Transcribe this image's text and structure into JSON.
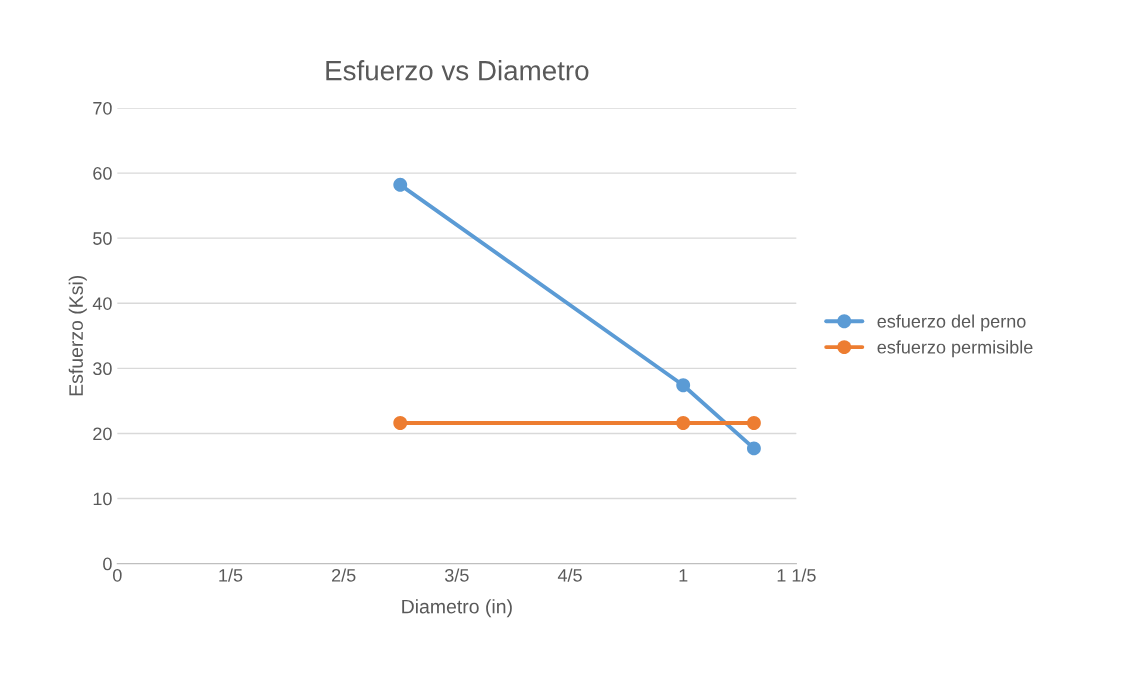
{
  "chart_data": {
    "type": "line",
    "title": "Esfuerzo vs Diametro",
    "xlabel": "Diametro (in)",
    "ylabel": "Esfuerzo (Ksi)",
    "series": [
      {
        "name": "esfuerzo del perno",
        "color": "#5b9bd5",
        "x": [
          0.5,
          1.0,
          1.125
        ],
        "values": [
          58.2,
          27.4,
          17.7
        ]
      },
      {
        "name": "esfuerzo permisible",
        "color": "#ed7d31",
        "x": [
          0.5,
          1.0,
          1.125
        ],
        "values": [
          21.6,
          21.6,
          21.6
        ]
      }
    ],
    "xlim": [
      0,
      1.2
    ],
    "xticks": [
      0,
      {
        "value": 0.2,
        "label": "1/5"
      },
      {
        "value": 0.4,
        "label": "2/5"
      },
      {
        "value": 0.6,
        "label": "3/5"
      },
      {
        "value": 0.8,
        "label": "4/5"
      },
      1,
      {
        "value": 1.2,
        "label": "1 1/5"
      }
    ],
    "ylim": [
      0,
      70
    ],
    "yticks": [
      0,
      10,
      20,
      30,
      40,
      50,
      60,
      70
    ],
    "grid": "y",
    "legend": "right",
    "marker": "circle",
    "line_style": "solid"
  }
}
